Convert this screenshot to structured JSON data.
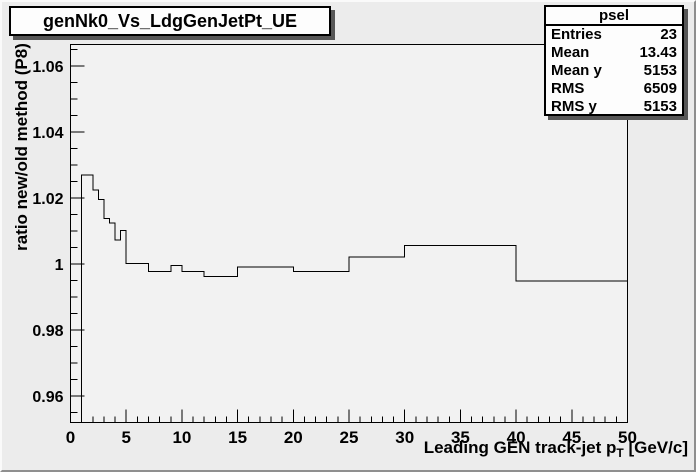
{
  "canvas": {
    "title_box": {
      "text": "genNk0_Vs_LdgGenJetPt_UE"
    },
    "stats_box": {
      "title": "psel",
      "rows": [
        {
          "label": "Entries",
          "value": "23"
        },
        {
          "label": "Mean",
          "value": "13.43"
        },
        {
          "label": "Mean y",
          "value": "5153"
        },
        {
          "label": "RMS",
          "value": "6509"
        },
        {
          "label": "RMS y",
          "value": "5153"
        }
      ]
    }
  },
  "colors": {
    "canvas_bg": "#ececec",
    "frame_bg": "#f2f2f2",
    "box_bg": "#fdfdfd",
    "line": "#000000",
    "shadow": "#575757"
  },
  "chart_data": {
    "type": "step-histogram",
    "title": "genNk0_Vs_LdgGenJetPt_UE",
    "ylabel": "ratio new/old method (P8)",
    "xlabel": "Leading GEN track-jet p_T [GeV/c]",
    "xlabel_parts": {
      "main": "Leading GEN track-jet p",
      "sub": "T",
      "unit": " [GeV/c]"
    },
    "xlim": [
      0,
      50
    ],
    "ylim": [
      0.952,
      1.0665
    ],
    "grid": false,
    "legend": "none",
    "x_ticks": [
      {
        "v": 0,
        "label": "0"
      },
      {
        "v": 5,
        "label": "5"
      },
      {
        "v": 10,
        "label": "10"
      },
      {
        "v": 15,
        "label": "15"
      },
      {
        "v": 20,
        "label": "20"
      },
      {
        "v": 25,
        "label": "25"
      },
      {
        "v": 30,
        "label": "30"
      },
      {
        "v": 35,
        "label": "35"
      },
      {
        "v": 40,
        "label": "40"
      },
      {
        "v": 45,
        "label": "45"
      },
      {
        "v": 50,
        "label": "50"
      }
    ],
    "x_minor_step": 1,
    "y_ticks": [
      {
        "v": 0.96,
        "label": "0.96"
      },
      {
        "v": 0.98,
        "label": "0.98"
      },
      {
        "v": 1,
        "label": "1"
      },
      {
        "v": 1.02,
        "label": "1.02"
      },
      {
        "v": 1.04,
        "label": "1.04"
      },
      {
        "v": 1.06,
        "label": "1.06"
      }
    ],
    "y_minor_step": 0.005,
    "bins": [
      {
        "x1": 1,
        "x2": 2,
        "y": 1.027
      },
      {
        "x1": 2,
        "x2": 2.5,
        "y": 1.0225
      },
      {
        "x1": 2.5,
        "x2": 3,
        "y": 1.0196
      },
      {
        "x1": 3,
        "x2": 3.5,
        "y": 1.0138
      },
      {
        "x1": 3.5,
        "x2": 4,
        "y": 1.0124
      },
      {
        "x1": 4,
        "x2": 4.5,
        "y": 1.0073
      },
      {
        "x1": 4.5,
        "x2": 5,
        "y": 1.0102
      },
      {
        "x1": 5,
        "x2": 7,
        "y": 1.0002
      },
      {
        "x1": 7,
        "x2": 9,
        "y": 0.9977
      },
      {
        "x1": 9,
        "x2": 10,
        "y": 0.9996
      },
      {
        "x1": 10,
        "x2": 12,
        "y": 0.9977
      },
      {
        "x1": 12,
        "x2": 15,
        "y": 0.9962
      },
      {
        "x1": 15,
        "x2": 20,
        "y": 0.9991
      },
      {
        "x1": 20,
        "x2": 25,
        "y": 0.9978
      },
      {
        "x1": 25,
        "x2": 30,
        "y": 1.0021
      },
      {
        "x1": 30,
        "x2": 40,
        "y": 1.0056
      },
      {
        "x1": 40,
        "x2": 50,
        "y": 0.9949
      }
    ]
  }
}
